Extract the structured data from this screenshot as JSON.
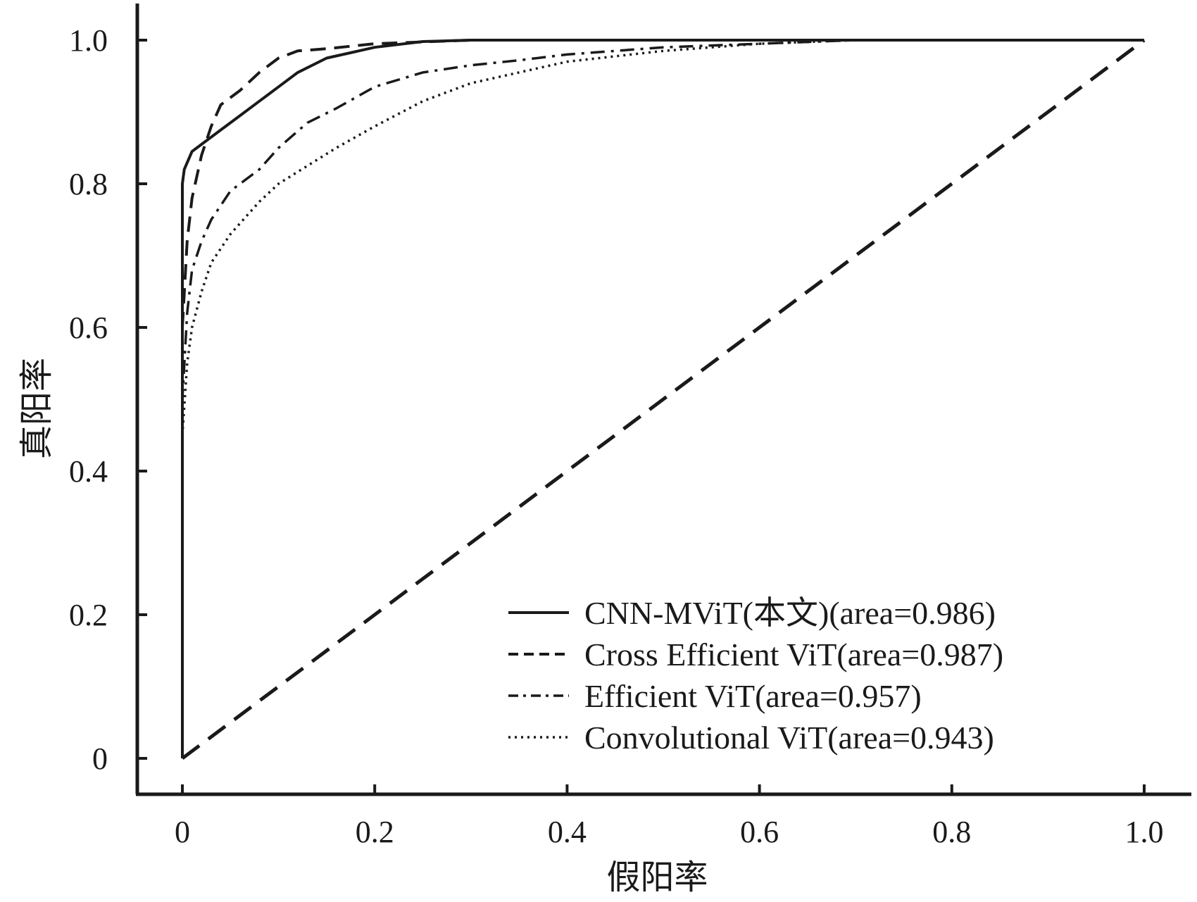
{
  "chart_data": {
    "type": "line",
    "title": "",
    "xlabel": "假阳率",
    "ylabel": "真阳率",
    "xlim": [
      0,
      1.0
    ],
    "ylim": [
      0,
      1.0
    ],
    "grid": false,
    "legend_position": "bottom-right",
    "x_ticks": [
      "0",
      "0.2",
      "0.4",
      "0.6",
      "0.8",
      "1.0"
    ],
    "y_ticks": [
      "0",
      "0.2",
      "0.4",
      "0.6",
      "0.8",
      "1.0"
    ],
    "series": [
      {
        "name": "CNN-MViT(本文)(area=0.986)",
        "line_style": "solid",
        "color": "#1a1a1a",
        "points": [
          [
            0,
            0
          ],
          [
            0,
            0.8
          ],
          [
            0.002,
            0.82
          ],
          [
            0.01,
            0.845
          ],
          [
            0.02,
            0.855
          ],
          [
            0.04,
            0.875
          ],
          [
            0.06,
            0.895
          ],
          [
            0.08,
            0.915
          ],
          [
            0.1,
            0.935
          ],
          [
            0.12,
            0.955
          ],
          [
            0.15,
            0.975
          ],
          [
            0.2,
            0.99
          ],
          [
            0.25,
            0.998
          ],
          [
            0.3,
            1.0
          ],
          [
            1.0,
            1.0
          ]
        ]
      },
      {
        "name": "Cross Efficient ViT(area=0.987)",
        "line_style": "dashed",
        "color": "#1a1a1a",
        "points": [
          [
            0,
            0
          ],
          [
            0,
            0.6
          ],
          [
            0.005,
            0.72
          ],
          [
            0.01,
            0.78
          ],
          [
            0.02,
            0.84
          ],
          [
            0.03,
            0.88
          ],
          [
            0.04,
            0.91
          ],
          [
            0.06,
            0.93
          ],
          [
            0.08,
            0.955
          ],
          [
            0.1,
            0.975
          ],
          [
            0.12,
            0.985
          ],
          [
            0.15,
            0.988
          ],
          [
            0.2,
            0.995
          ],
          [
            0.3,
            1.0
          ],
          [
            1.0,
            1.0
          ]
        ]
      },
      {
        "name": "Efficient ViT(area=0.957)",
        "line_style": "dash-dot",
        "color": "#1a1a1a",
        "points": [
          [
            0,
            0
          ],
          [
            0,
            0.5
          ],
          [
            0.005,
            0.62
          ],
          [
            0.01,
            0.68
          ],
          [
            0.02,
            0.72
          ],
          [
            0.03,
            0.75
          ],
          [
            0.05,
            0.79
          ],
          [
            0.08,
            0.82
          ],
          [
            0.1,
            0.85
          ],
          [
            0.13,
            0.885
          ],
          [
            0.16,
            0.905
          ],
          [
            0.2,
            0.935
          ],
          [
            0.25,
            0.955
          ],
          [
            0.3,
            0.965
          ],
          [
            0.35,
            0.972
          ],
          [
            0.4,
            0.98
          ],
          [
            0.5,
            0.99
          ],
          [
            0.6,
            0.995
          ],
          [
            0.7,
            1.0
          ],
          [
            1.0,
            1.0
          ]
        ]
      },
      {
        "name": "Convolutional ViT(area=0.943)",
        "line_style": "dotted",
        "color": "#1a1a1a",
        "points": [
          [
            0,
            0
          ],
          [
            0,
            0.45
          ],
          [
            0.005,
            0.55
          ],
          [
            0.01,
            0.6
          ],
          [
            0.02,
            0.65
          ],
          [
            0.03,
            0.69
          ],
          [
            0.05,
            0.73
          ],
          [
            0.08,
            0.775
          ],
          [
            0.1,
            0.8
          ],
          [
            0.13,
            0.825
          ],
          [
            0.16,
            0.85
          ],
          [
            0.2,
            0.88
          ],
          [
            0.25,
            0.915
          ],
          [
            0.3,
            0.94
          ],
          [
            0.35,
            0.955
          ],
          [
            0.4,
            0.97
          ],
          [
            0.5,
            0.985
          ],
          [
            0.6,
            0.995
          ],
          [
            0.7,
            1.0
          ],
          [
            1.0,
            1.0
          ]
        ]
      },
      {
        "name": "",
        "line_style": "long-dashed",
        "color": "#1a1a1a",
        "points": [
          [
            0,
            0
          ],
          [
            1.0,
            1.0
          ]
        ]
      }
    ]
  }
}
